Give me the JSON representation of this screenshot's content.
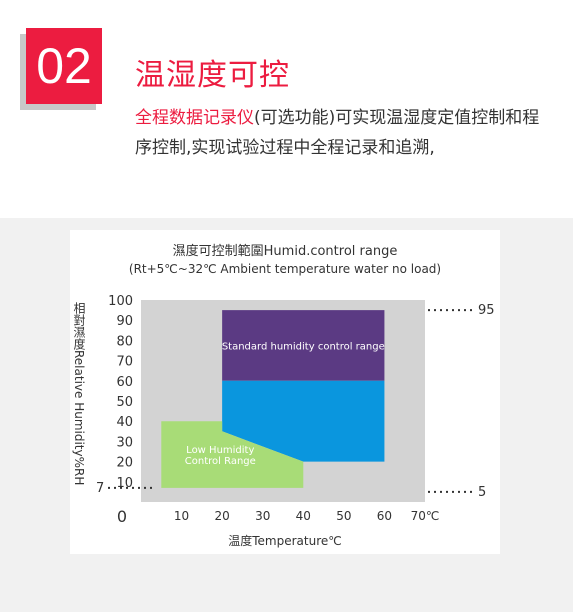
{
  "header": {
    "number": "02",
    "title": "温湿度可控",
    "desc_highlight": "全程数据记录仪",
    "desc_rest": "(可选功能)可实现温湿度定值控制和程序控制,实现试验过程中全程记录和追溯,"
  },
  "chart_data": {
    "type": "area",
    "title": "濕度可控制範圍Humid.control range",
    "subtitle": "(Rt+5℃~32℃ Ambient temperature water no load)",
    "xlabel": "温度Temperature℃",
    "ylabel": "相對濕度Relative Humidity%RH",
    "x_ticks": [
      "0",
      "10",
      "20",
      "30",
      "40",
      "50",
      "60",
      "70℃"
    ],
    "y_ticks": [
      "100",
      "90",
      "80",
      "70",
      "60",
      "50",
      "40",
      "30",
      "20",
      "10"
    ],
    "xlim": [
      0,
      70
    ],
    "ylim": [
      0,
      100
    ],
    "regions": [
      {
        "name": "Standard humidity control range",
        "label": "Standard humidity control range",
        "color": "#5b3a83",
        "points": [
          [
            20,
            95
          ],
          [
            60,
            95
          ],
          [
            60,
            60
          ],
          [
            20,
            60
          ]
        ]
      },
      {
        "name": "standard-lower",
        "color": "#0a96de",
        "points": [
          [
            20,
            60
          ],
          [
            60,
            60
          ],
          [
            60,
            20
          ],
          [
            40,
            20
          ],
          [
            20,
            35
          ]
        ]
      },
      {
        "name": "Low Humidity Control Range",
        "label": "Low Humidity\nControl Range",
        "color": "#a8dc77",
        "points": [
          [
            5,
            40
          ],
          [
            20,
            40
          ],
          [
            20,
            35
          ],
          [
            40,
            20
          ],
          [
            40,
            7
          ],
          [
            5,
            7
          ]
        ]
      }
    ],
    "annotations": [
      {
        "text": "95",
        "y": 95,
        "side": "right"
      },
      {
        "text": "5",
        "y": 5,
        "side": "right"
      },
      {
        "text": "7",
        "y": 7,
        "side": "left"
      }
    ]
  }
}
